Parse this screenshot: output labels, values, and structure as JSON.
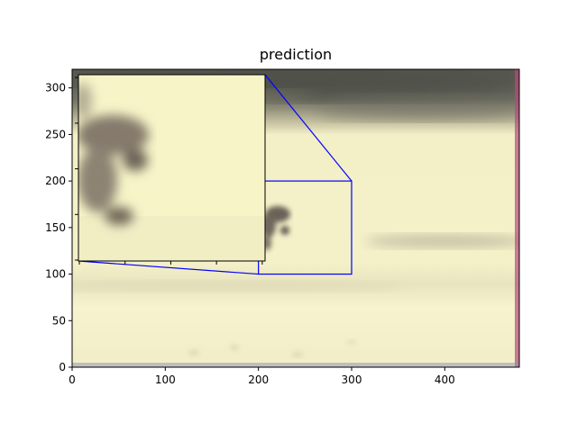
{
  "chart_data": {
    "type": "image",
    "title": "prediction",
    "xlabel": "",
    "ylabel": "",
    "xlim": [
      0,
      480
    ],
    "ylim": [
      0,
      320
    ],
    "xticks": [
      0,
      100,
      200,
      300,
      400
    ],
    "yticks": [
      0,
      50,
      100,
      150,
      200,
      250,
      300
    ],
    "zoom_region": {
      "x": [
        200,
        300
      ],
      "y": [
        100,
        200
      ]
    },
    "inset_ticks": [
      "",
      "",
      "",
      "",
      ""
    ],
    "colors": {
      "zoom_box": "#0000ff",
      "sand": "#f3efc6",
      "sand_light": "#f8f6d2",
      "background_dark": "#5a5a52",
      "dog": "#6b6258"
    }
  }
}
